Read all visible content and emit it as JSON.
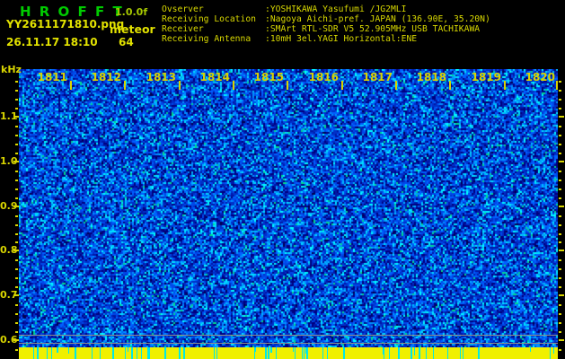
{
  "header": {
    "app_title": "H R O F F T",
    "version": "1.0.0f",
    "filename": "YY2611171810.png",
    "mode": "meteor",
    "datetime": "26.11.17 18:10",
    "count": "64",
    "metadata": [
      {
        "label": "Ovserver",
        "value": ":YOSHIKAWA Yasufumi /JG2MLI"
      },
      {
        "label": "Receiving Location",
        "value": ":Nagoya Aichi-pref. JAPAN (136.90E, 35.20N)"
      },
      {
        "label": "Receiver",
        "value": ":SMArt RTL-SDR V5 52.905MHz USB TACHIKAWA"
      },
      {
        "label": "Receiving Antenna",
        "value": ":10mH 3el.YAGI Horizontal:ENE"
      }
    ]
  },
  "spectrogram": {
    "y_axis": {
      "unit": "kHz",
      "major_tick_labels": [
        "1.1",
        "1.0",
        "0.9",
        "0.8",
        "0.7",
        "0.6"
      ]
    },
    "x_axis": {
      "time_labels": [
        "1811",
        "1812",
        "1813",
        "1814",
        "1815",
        "1816",
        "1817",
        "1818",
        "1819",
        "1820"
      ]
    },
    "colors": {
      "title_green": "#00cc00",
      "version_green": "#a6c800",
      "text_yellow": "#d8d800",
      "axis_yellow": "#d8d500",
      "bar_yellow": "#f0f000",
      "dropout_cyan": "#00e8e8",
      "grid_gray": "#8c8c8c"
    },
    "noise_palette": [
      {
        "c": "#000050",
        "w": 2
      },
      {
        "c": "#000080",
        "w": 14
      },
      {
        "c": "#0018a8",
        "w": 14
      },
      {
        "c": "#0030c8",
        "w": 16
      },
      {
        "c": "#0048e8",
        "w": 14
      },
      {
        "c": "#0060ff",
        "w": 12
      },
      {
        "c": "#0090ff",
        "w": 9
      },
      {
        "c": "#00b8ff",
        "w": 7
      },
      {
        "c": "#00e0ff",
        "w": 5
      },
      {
        "c": "#00ffff",
        "w": 3
      },
      {
        "c": "#00d890",
        "w": 2
      }
    ]
  }
}
